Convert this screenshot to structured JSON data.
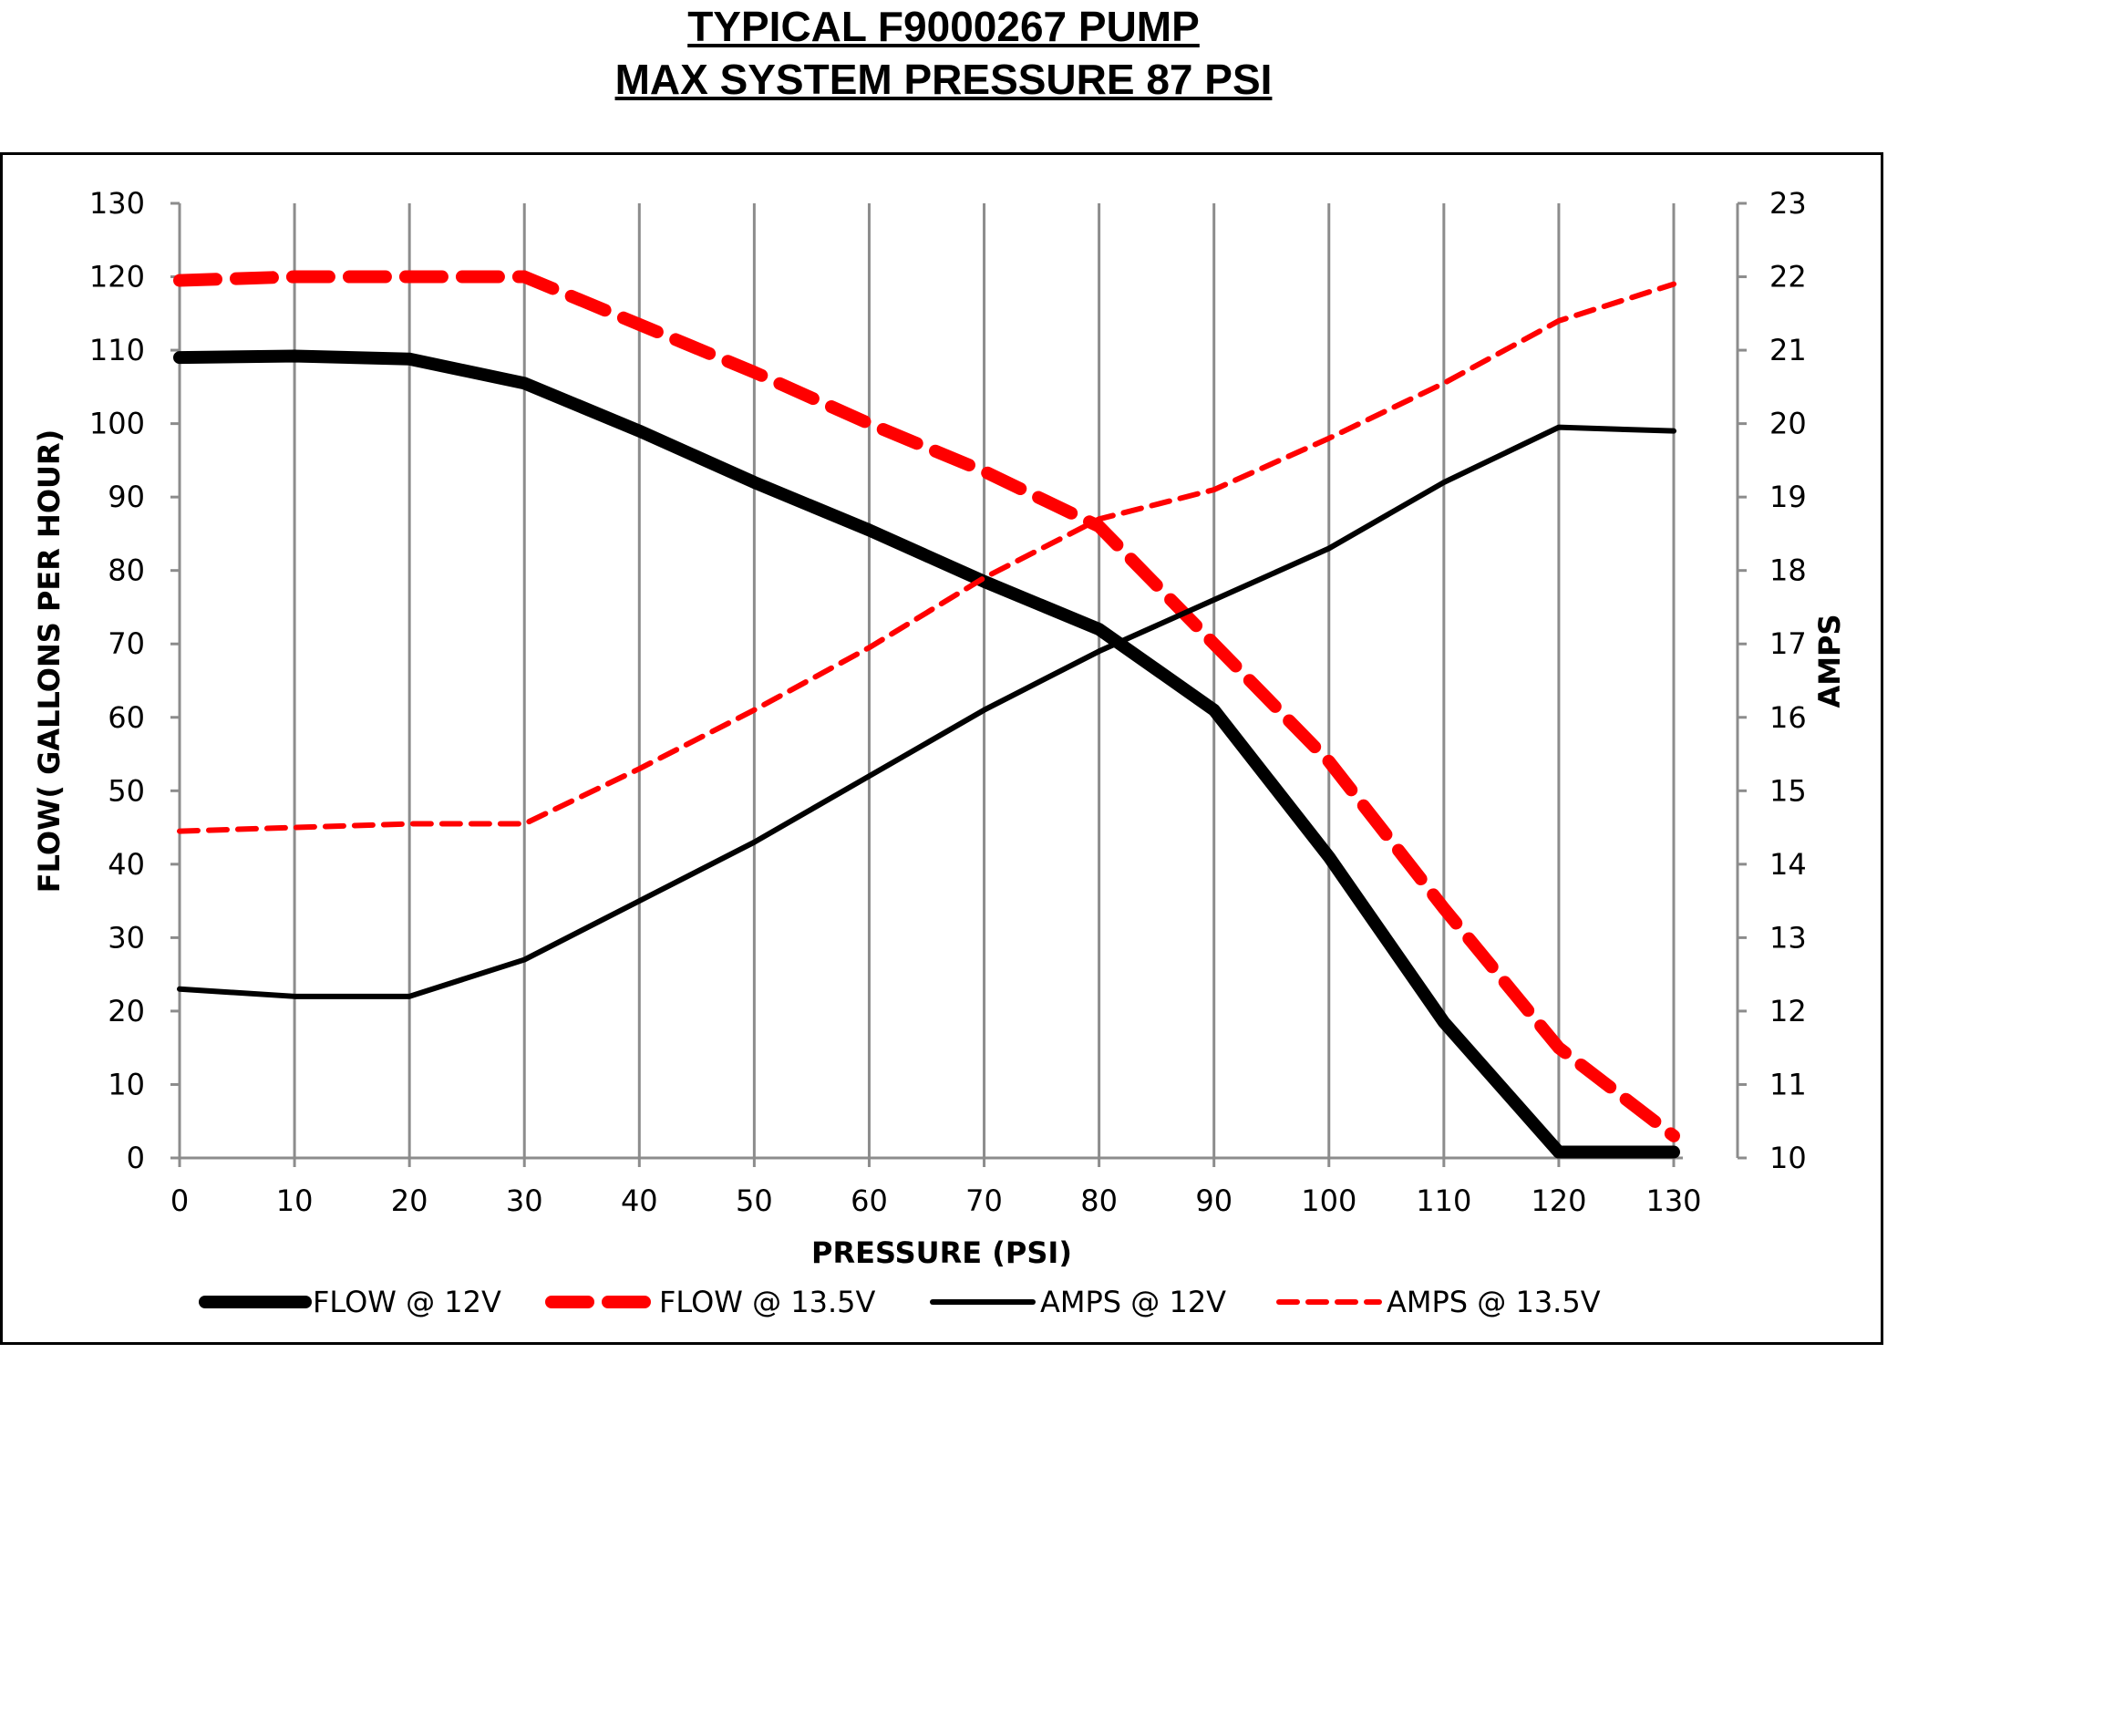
{
  "chart_data": {
    "type": "line",
    "title": "TYPICAL F9000267 PUMP",
    "subtitle": "MAX SYSTEM PRESSURE 87 PSI",
    "xlabel": "PRESSURE (PSI)",
    "ylabel": "FLOW( GALLONS PER HOUR)",
    "y2label": "AMPS",
    "xlim": [
      0,
      130
    ],
    "ylim": [
      0,
      130
    ],
    "y2lim": [
      10,
      23
    ],
    "x_ticks": [
      0,
      10,
      20,
      30,
      40,
      50,
      60,
      70,
      80,
      90,
      100,
      110,
      120,
      130
    ],
    "y_ticks": [
      0,
      10,
      20,
      30,
      40,
      50,
      60,
      70,
      80,
      90,
      100,
      110,
      120,
      130
    ],
    "y2_ticks": [
      10,
      11,
      12,
      13,
      14,
      15,
      16,
      17,
      18,
      19,
      20,
      21,
      22,
      23
    ],
    "grid": "vertical",
    "legend_position": "bottom",
    "x": [
      0,
      10,
      20,
      30,
      40,
      50,
      60,
      70,
      80,
      90,
      100,
      110,
      120,
      130
    ],
    "series": [
      {
        "name": "FLOW @ 12V",
        "axis": "left",
        "color": "#000000",
        "style": "solid-thick",
        "values": [
          109,
          109.2,
          108.8,
          105.5,
          99,
          92,
          85.5,
          78.5,
          72,
          61,
          41,
          18.5,
          0.8,
          0.8
        ]
      },
      {
        "name": "FLOW @ 13.5V",
        "axis": "left",
        "color": "#ff0000",
        "style": "dashed-thick",
        "values": [
          119.5,
          120,
          120,
          120,
          113.5,
          107,
          100,
          93.5,
          86,
          70,
          54,
          34,
          15,
          3
        ]
      },
      {
        "name": "AMPS @ 12V",
        "axis": "right",
        "color": "#000000",
        "style": "solid",
        "values": [
          12.3,
          12.2,
          12.2,
          12.7,
          13.5,
          14.3,
          15.2,
          16.1,
          16.9,
          17.6,
          18.3,
          19.2,
          19.95,
          19.9
        ]
      },
      {
        "name": "AMPS @ 13.5V",
        "axis": "right",
        "color": "#ff0000",
        "style": "dashed",
        "values": [
          14.45,
          14.5,
          14.55,
          14.55,
          15.3,
          16.1,
          16.95,
          17.9,
          18.7,
          19.1,
          19.8,
          20.55,
          21.4,
          21.9
        ]
      }
    ]
  }
}
